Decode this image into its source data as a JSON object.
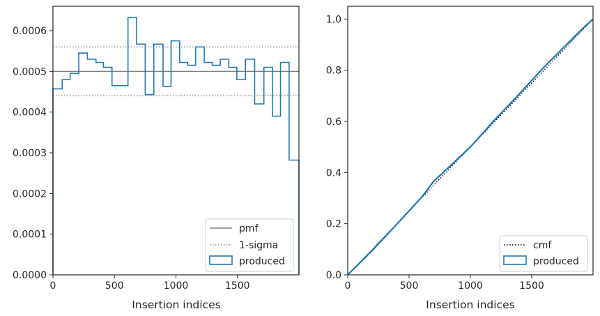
{
  "colors": {
    "produced": "#1f77b4",
    "pmf": "#808080",
    "sigma": "#808080",
    "cmf": "#000000",
    "axes": "#262626",
    "legend_border": "#cccccc"
  },
  "chart_data": [
    {
      "type": "histogram-step",
      "xlabel": "Insertion indices",
      "ylabel": "",
      "xlim": [
        0,
        2000
      ],
      "ylim": [
        0,
        0.00066
      ],
      "xticks": [
        0,
        500,
        1000,
        1500
      ],
      "xtick_labels": [
        "0",
        "500",
        "1000",
        "1500"
      ],
      "yticks": [
        0,
        0.0001,
        0.0002,
        0.0003,
        0.0004,
        0.0005,
        0.0006
      ],
      "ytick_labels": [
        "0.0000",
        "0.0001",
        "0.0002",
        "0.0003",
        "0.0004",
        "0.0005",
        "0.0006"
      ],
      "pmf": 0.0005,
      "sigma_bounds": [
        0.00044,
        0.00056
      ],
      "bin_edges": [
        0,
        75,
        140,
        210,
        280,
        350,
        410,
        480,
        610,
        680,
        750,
        820,
        895,
        960,
        1030,
        1095,
        1160,
        1230,
        1295,
        1360,
        1430,
        1495,
        1565,
        1640,
        1715,
        1785,
        1850,
        1920,
        2000
      ],
      "values": [
        0.000457,
        0.00048,
        0.000495,
        0.000545,
        0.00053,
        0.000522,
        0.00051,
        0.000465,
        0.000632,
        0.000567,
        0.000443,
        0.000567,
        0.000463,
        0.000575,
        0.000522,
        0.000515,
        0.00056,
        0.000522,
        0.000515,
        0.00053,
        0.00051,
        0.00048,
        0.00053,
        0.00042,
        0.00051,
        0.00039,
        0.000522,
        0.000282
      ],
      "legend": {
        "placement": "lower-right",
        "entries": [
          "pmf",
          "1-sigma",
          "produced"
        ]
      }
    },
    {
      "type": "line",
      "xlabel": "Insertion indices",
      "ylabel": "",
      "xlim": [
        0,
        2000
      ],
      "ylim": [
        0,
        1.05
      ],
      "xticks": [
        0,
        500,
        1000,
        1500
      ],
      "xtick_labels": [
        "0",
        "500",
        "1000",
        "1500"
      ],
      "yticks": [
        0,
        0.2,
        0.4,
        0.6,
        0.8,
        1.0
      ],
      "ytick_labels": [
        "0.0",
        "0.2",
        "0.4",
        "0.6",
        "0.8",
        "1.0"
      ],
      "series": [
        {
          "name": "cmf",
          "x": [
            0,
            2000
          ],
          "values": [
            0,
            1.0
          ]
        },
        {
          "name": "produced",
          "x": [
            0,
            200,
            400,
            600,
            700,
            800,
            900,
            1000,
            1100,
            1200,
            1300,
            1400,
            1500,
            1600,
            1700,
            1800,
            1900,
            2000
          ],
          "values": [
            0,
            0.095,
            0.198,
            0.302,
            0.365,
            0.41,
            0.455,
            0.5,
            0.553,
            0.607,
            0.657,
            0.708,
            0.76,
            0.812,
            0.86,
            0.908,
            0.956,
            1.0
          ]
        }
      ],
      "legend": {
        "placement": "lower-right",
        "entries": [
          "cmf",
          "produced"
        ]
      }
    }
  ]
}
